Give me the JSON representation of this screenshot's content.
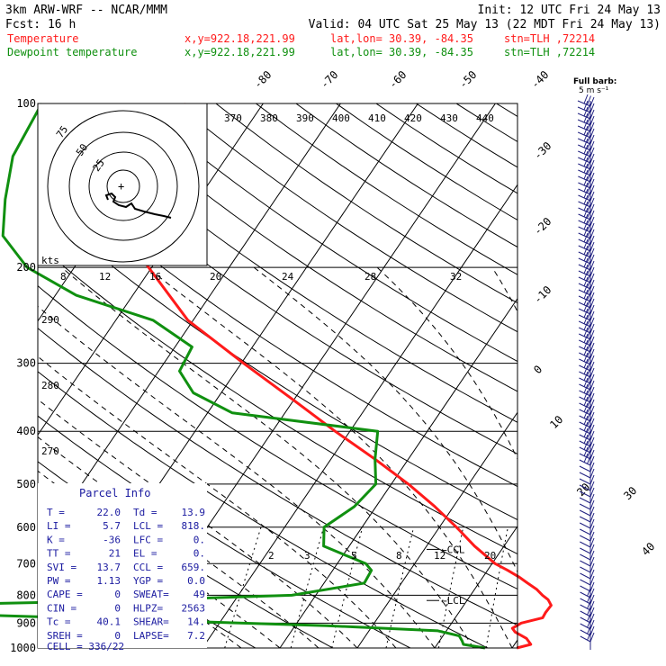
{
  "header": {
    "title": "3km ARW-WRF -- NCAR/MMM",
    "init": "Init: 12 UTC Fri 24 May 13",
    "fcst": "Fcst:    16 h",
    "valid": "Valid: 04 UTC Sat 25 May 13 (22 MDT Fri 24 May 13)",
    "temp_label": "Temperature",
    "temp_xy": "x,y=922.18,221.99",
    "temp_latlon": "lat,lon= 30.39, -84.35",
    "temp_stn": "stn=TLH ,72214",
    "dew_label": "Dewpoint temperature",
    "dew_xy": "x,y=922.18,221.99",
    "dew_latlon": "lat,lon= 30.39, -84.35",
    "dew_stn": "stn=TLH ,72214"
  },
  "colors": {
    "temperature": "#ff1a1a",
    "dewpoint": "#109010",
    "wind_barbs": "#202080",
    "grid": "#000000"
  },
  "barb_key": {
    "line1": "Full barb:",
    "line2": "5 m s⁻¹"
  },
  "hodograph": {
    "ring_labels": [
      "75",
      "50",
      "25"
    ],
    "center_mark": "+",
    "units": "kts"
  },
  "chart_data": {
    "type": "line",
    "diagram": "skew-T log-p",
    "pressure_levels_hPa": [
      100,
      200,
      300,
      400,
      500,
      600,
      700,
      800,
      900,
      1000
    ],
    "pressure_tick_labels": [
      "100",
      "200",
      "300",
      "400",
      "500",
      "600",
      "700",
      "800",
      "900",
      "1000"
    ],
    "isotherm_labels": [
      "-80",
      "-70",
      "-60",
      "-50",
      "-40",
      "-30",
      "-20",
      "-10",
      "0",
      "10",
      "20",
      "30",
      "40"
    ],
    "theta_labels": [
      "370",
      "380",
      "390",
      "400",
      "410",
      "420",
      "430",
      "440"
    ],
    "theta_left_labels": [
      "290",
      "280",
      "270"
    ],
    "mixing_ratio_upper_labels": [
      "8",
      "12",
      "16",
      "20",
      "24",
      "28",
      "32"
    ],
    "mixing_ratio_lower_labels": [
      "2",
      "3",
      "5",
      "8",
      "12",
      "20"
    ],
    "series": [
      {
        "name": "Temperature",
        "color": "#ff1a1a",
        "pressure": [
          1000,
          985,
          960,
          935,
          920,
          900,
          880,
          860,
          835,
          815,
          800,
          780,
          760,
          740,
          720,
          700,
          650,
          600,
          550,
          500,
          450,
          400,
          350,
          300,
          250,
          200,
          175,
          150,
          125,
          110,
          100
        ],
        "temp_C": [
          20.6,
          22.1,
          21.0,
          19.0,
          18.3,
          19.0,
          21.3,
          21.2,
          21.3,
          20.4,
          19.3,
          18.0,
          16.3,
          14.6,
          12.6,
          10.4,
          6.2,
          2.2,
          -2.4,
          -7.8,
          -14.3,
          -21.9,
          -30.1,
          -39.7,
          -50.7,
          -60.4,
          -66.1,
          -70.1,
          -70.4,
          -69.8,
          -70.0
        ]
      },
      {
        "name": "Dewpoint temperature",
        "color": "#109010",
        "pressure": [
          1000,
          985,
          970,
          950,
          930,
          910,
          880,
          860,
          840,
          820,
          800,
          760,
          720,
          700,
          650,
          600,
          550,
          500,
          450,
          400,
          370,
          340,
          310,
          280,
          250,
          225,
          200,
          175,
          150,
          125,
          100
        ],
        "temp_C": [
          16.5,
          13.4,
          12.9,
          12.1,
          8.9,
          -5.9,
          -39.8,
          -62.5,
          -71.7,
          -36.4,
          -13.1,
          -4.8,
          -5.0,
          -6.3,
          -13.3,
          -14.9,
          -12.8,
          -12.0,
          -14.3,
          -16.4,
          -36.8,
          -43.6,
          -47.3,
          -47.8,
          -55.2,
          -67.3,
          -76.1,
          -82.0,
          -84.9,
          -87.7,
          -88.6
        ]
      }
    ],
    "markers": [
      {
        "label": "LCL",
        "pressure": 818
      },
      {
        "label": "CCL",
        "pressure": 659
      }
    ]
  },
  "parcel_info": {
    "title": "Parcel Info",
    "rows": [
      [
        "T  =",
        "22.0",
        "Td =",
        "13.9"
      ],
      [
        "LI =",
        "5.7",
        "LCL =",
        "818."
      ],
      [
        "K  =",
        "-36",
        "LFC =",
        "0."
      ],
      [
        "TT =",
        "21",
        "EL  =",
        "0."
      ],
      [
        "SVI =",
        "13.7",
        "CCL =",
        "659."
      ],
      [
        "PW =",
        "1.13",
        "YGP =",
        "0.0"
      ],
      [
        "CAPE =",
        "0",
        "SWEAT=",
        "49"
      ],
      [
        "CIN =",
        "0",
        "HLPZ=",
        "2563"
      ],
      [
        "Tc =",
        "40.1",
        "SHEAR=",
        "14."
      ],
      [
        "SREH =",
        "0",
        "LAPSE=",
        "7.2"
      ]
    ],
    "cell": "CELL = 336/22"
  }
}
